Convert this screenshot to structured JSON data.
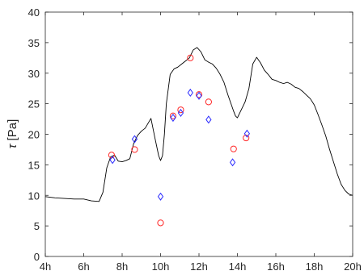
{
  "chart_data": {
    "type": "line",
    "title": "",
    "xlabel": "",
    "ylabel_symbol": "τ",
    "ylabel_unit": " [Pa]",
    "xlim": [
      4,
      20
    ],
    "ylim": [
      0,
      40
    ],
    "x_ticks": [
      {
        "value": 4,
        "label": "4h"
      },
      {
        "value": 6,
        "label": "6h"
      },
      {
        "value": 8,
        "label": "8h"
      },
      {
        "value": 10,
        "label": "10h"
      },
      {
        "value": 12,
        "label": "12h"
      },
      {
        "value": 14,
        "label": "14h"
      },
      {
        "value": 16,
        "label": "16h"
      },
      {
        "value": 18,
        "label": "18h"
      },
      {
        "value": 20,
        "label": "20h"
      }
    ],
    "y_ticks": [
      {
        "value": 0,
        "label": "0"
      },
      {
        "value": 5,
        "label": "5"
      },
      {
        "value": 10,
        "label": "10"
      },
      {
        "value": 15,
        "label": "15"
      },
      {
        "value": 20,
        "label": "20"
      },
      {
        "value": 25,
        "label": "25"
      },
      {
        "value": 30,
        "label": "30"
      },
      {
        "value": 35,
        "label": "35"
      },
      {
        "value": 40,
        "label": "40"
      }
    ],
    "grid": false,
    "series": [
      {
        "type": "line",
        "color": "#000000",
        "x": [
          4.0,
          4.5,
          5.0,
          5.5,
          6.0,
          6.4,
          6.8,
          7.0,
          7.2,
          7.4,
          7.6,
          7.8,
          8.0,
          8.2,
          8.4,
          8.6,
          8.8,
          9.0,
          9.2,
          9.5,
          9.7,
          9.9,
          10.0,
          10.1,
          10.2,
          10.3,
          10.5,
          10.7,
          10.9,
          11.1,
          11.3,
          11.5,
          11.7,
          11.9,
          12.1,
          12.3,
          12.5,
          12.7,
          12.9,
          13.1,
          13.3,
          13.5,
          13.7,
          13.8,
          13.9,
          14.0,
          14.2,
          14.4,
          14.6,
          14.8,
          15.0,
          15.2,
          15.4,
          15.6,
          15.8,
          16.0,
          16.2,
          16.4,
          16.6,
          16.8,
          17.0,
          17.2,
          17.4,
          17.6,
          17.8,
          18.0,
          18.2,
          18.4,
          18.6,
          18.8,
          19.0,
          19.2,
          19.4,
          19.6,
          19.8,
          20.0
        ],
        "y": [
          9.8,
          9.6,
          9.5,
          9.4,
          9.4,
          9.1,
          9.0,
          10.5,
          14.5,
          16.3,
          16.6,
          15.6,
          15.5,
          15.7,
          16.0,
          18.5,
          19.8,
          20.5,
          21.0,
          22.6,
          19.5,
          16.5,
          15.7,
          16.5,
          20.0,
          25.0,
          29.8,
          30.7,
          31.0,
          31.5,
          32.0,
          32.5,
          33.8,
          34.2,
          33.5,
          32.2,
          31.8,
          31.5,
          30.8,
          29.8,
          28.5,
          26.5,
          24.7,
          23.8,
          23.0,
          22.7,
          24.0,
          25.3,
          27.5,
          31.5,
          32.6,
          31.7,
          30.5,
          29.8,
          29.0,
          28.8,
          28.5,
          28.3,
          28.5,
          28.2,
          27.7,
          27.5,
          27.0,
          26.4,
          25.8,
          24.8,
          23.2,
          21.5,
          19.7,
          17.5,
          15.5,
          13.5,
          11.8,
          10.8,
          10.2,
          10.0
        ]
      },
      {
        "type": "scatter",
        "marker": "circle",
        "color": "#ff2a2a",
        "x": [
          7.45,
          8.65,
          10.0,
          10.65,
          11.05,
          11.55,
          12.0,
          12.5,
          13.8,
          14.45
        ],
        "y": [
          16.6,
          17.5,
          5.5,
          23.0,
          24.0,
          32.5,
          26.5,
          25.3,
          17.6,
          19.4
        ]
      },
      {
        "type": "scatter",
        "marker": "diamond",
        "color": "#2b2bff",
        "x": [
          7.5,
          8.65,
          10.0,
          10.65,
          11.05,
          11.55,
          12.0,
          12.5,
          13.75,
          14.5
        ],
        "y": [
          15.8,
          19.2,
          9.8,
          22.7,
          23.5,
          26.8,
          26.3,
          22.4,
          15.4,
          20.1
        ]
      }
    ]
  }
}
